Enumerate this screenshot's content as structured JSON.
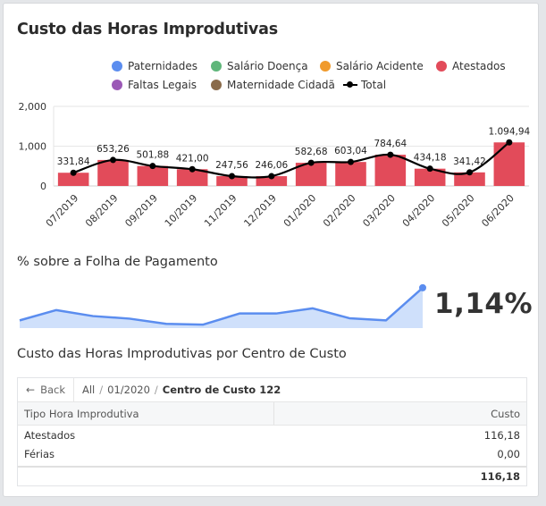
{
  "title": "Custo das Horas Improdutivas",
  "legend": [
    {
      "label": "Paternidades",
      "color": "#5b8def"
    },
    {
      "label": "Salário Doença",
      "color": "#5fb67a"
    },
    {
      "label": "Salário Acidente",
      "color": "#f09a2c"
    },
    {
      "label": "Atestados",
      "color": "#e24b5a"
    },
    {
      "label": "Faltas Legais",
      "color": "#9b59b6"
    },
    {
      "label": "Maternidade Cidadã",
      "color": "#8a6b4a"
    },
    {
      "label": "Total",
      "color": "#000000"
    }
  ],
  "chart_data": [
    {
      "type": "bar",
      "title": "Custo das Horas Improdutivas",
      "categories": [
        "07/2019",
        "08/2019",
        "09/2019",
        "10/2019",
        "11/2019",
        "12/2019",
        "01/2020",
        "02/2020",
        "03/2020",
        "04/2020",
        "05/2020",
        "06/2020"
      ],
      "series": [
        {
          "name": "Atestados",
          "type": "bar",
          "color": "#e24b5a",
          "values": [
            331.84,
            653.26,
            501.88,
            421.0,
            247.56,
            246.06,
            582.68,
            603.04,
            784.64,
            434.18,
            341.42,
            1094.94
          ]
        },
        {
          "name": "Total",
          "type": "line",
          "color": "#000000",
          "values": [
            331.84,
            653.26,
            501.88,
            421.0,
            247.56,
            246.06,
            582.68,
            603.04,
            784.64,
            434.18,
            341.42,
            1094.94
          ]
        }
      ],
      "data_labels": [
        "331,84",
        "653,26",
        "501,88",
        "421,00",
        "247,56",
        "246,06",
        "582,68",
        "603,04",
        "784,64",
        "434,18",
        "341,42",
        "1.094,94"
      ],
      "yticks": [
        "0",
        "1,000",
        "2,000"
      ],
      "ylim": [
        0,
        2000
      ],
      "grid": true,
      "legend_position": "top-right"
    },
    {
      "type": "area",
      "title": "% sobre a Folha de Pagamento",
      "color": "#5b8def",
      "values": [
        0.38,
        0.62,
        0.48,
        0.42,
        0.3,
        0.28,
        0.54,
        0.54,
        0.66,
        0.43,
        0.38,
        1.14
      ],
      "ylim": [
        0.2,
        1.2
      ]
    }
  ],
  "percent_section": {
    "title": "% sobre a Folha de Pagamento",
    "value": "1,14%"
  },
  "table_section": {
    "title": "Custo das Horas Improdutivas por Centro de Custo",
    "back_label": "Back",
    "breadcrumb": {
      "all": "All",
      "period": "01/2020",
      "current": "Centro de Custo 122"
    },
    "columns": {
      "type": "Tipo Hora Improdutiva",
      "cost": "Custo"
    },
    "rows": [
      {
        "type": "Atestados",
        "cost": "116,18"
      },
      {
        "type": "Férias",
        "cost": "0,00"
      }
    ],
    "total": "116,18"
  }
}
